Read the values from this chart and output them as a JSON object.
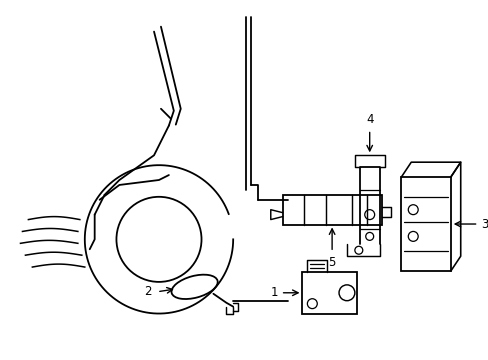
{
  "bg_color": "#ffffff",
  "line_color": "#000000",
  "line_width": 1.3,
  "fig_width": 4.89,
  "fig_height": 3.6,
  "dpi": 100,
  "label_fontsize": 8.5
}
